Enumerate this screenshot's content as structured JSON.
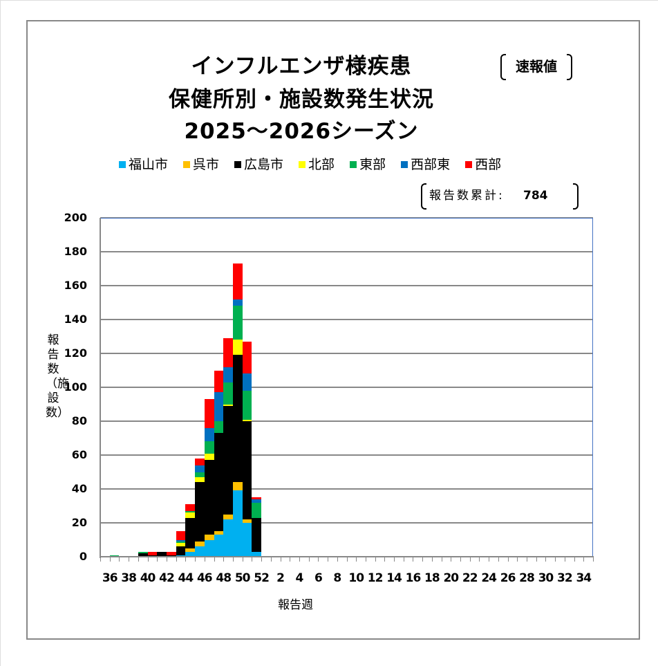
{
  "title": {
    "line1": "インフルエンザ様疾患",
    "line2": "保健所別・施設数発生状況",
    "line3": "2025～2026シーズン",
    "flash_label": "速報値"
  },
  "total": {
    "label": "報告数累計:",
    "value": "784"
  },
  "legend": [
    {
      "label": "福山市",
      "color": "#00b0f0"
    },
    {
      "label": "呉市",
      "color": "#ffc000"
    },
    {
      "label": "広島市",
      "color": "#000000"
    },
    {
      "label": "北部",
      "color": "#ffff00"
    },
    {
      "label": "東部",
      "color": "#00b050"
    },
    {
      "label": "西部東",
      "color": "#0070c0"
    },
    {
      "label": "西部",
      "color": "#ff0000"
    }
  ],
  "axes": {
    "ylabel": "報告数（施設数）",
    "xlabel": "報告週",
    "yticks": [
      "200",
      "180",
      "160",
      "140",
      "120",
      "100",
      "80",
      "60",
      "40",
      "20",
      "0"
    ],
    "xticks": [
      "36",
      "38",
      "40",
      "42",
      "44",
      "46",
      "48",
      "50",
      "52",
      "2",
      "4",
      "6",
      "8",
      "10",
      "12",
      "14",
      "16",
      "18",
      "20",
      "22",
      "24",
      "26",
      "28",
      "30",
      "32",
      "34"
    ]
  },
  "chart_data": {
    "type": "bar",
    "stacked": true,
    "title": "インフルエンザ様疾患 保健所別・施設数発生状況 2025～2026シーズン",
    "xlabel": "報告週",
    "ylabel": "報告数（施設数）",
    "ylim": [
      0,
      200
    ],
    "grid": true,
    "legend_position": "top",
    "categories": [
      "36",
      "37",
      "38",
      "39",
      "40",
      "41",
      "42",
      "43",
      "44",
      "45",
      "46",
      "47",
      "48",
      "49",
      "50",
      "51",
      "52",
      "1",
      "2",
      "3",
      "4",
      "5",
      "6",
      "7",
      "8",
      "9",
      "10",
      "11",
      "12",
      "13",
      "14",
      "15",
      "16",
      "17",
      "18",
      "19",
      "20",
      "21",
      "22",
      "23",
      "24",
      "25",
      "26",
      "27",
      "28",
      "29",
      "30",
      "31",
      "32",
      "33",
      "34",
      "35"
    ],
    "series": [
      {
        "name": "福山市",
        "color": "#00b0f0",
        "values": [
          0,
          0,
          0,
          0,
          0,
          0,
          0,
          0,
          1,
          3,
          6,
          10,
          13,
          22,
          39,
          20,
          3,
          0,
          0,
          0,
          0,
          0,
          0,
          0,
          0,
          0,
          0,
          0,
          0,
          0,
          0,
          0,
          0,
          0,
          0,
          0,
          0,
          0,
          0,
          0,
          0,
          0,
          0,
          0,
          0,
          0,
          0,
          0,
          0,
          0,
          0,
          0
        ]
      },
      {
        "name": "呉市",
        "color": "#ffc000",
        "values": [
          0,
          0,
          0,
          0,
          0,
          0,
          0,
          0,
          0,
          2,
          3,
          3,
          2,
          3,
          5,
          2,
          0,
          0,
          0,
          0,
          0,
          0,
          0,
          0,
          0,
          0,
          0,
          0,
          0,
          0,
          0,
          0,
          0,
          0,
          0,
          0,
          0,
          0,
          0,
          0,
          0,
          0,
          0,
          0,
          0,
          0,
          0,
          0,
          0,
          0,
          0,
          0
        ]
      },
      {
        "name": "広島市",
        "color": "#000000",
        "values": [
          0,
          0,
          0,
          0,
          2,
          1,
          3,
          1,
          5,
          18,
          35,
          44,
          58,
          64,
          75,
          58,
          20,
          0,
          0,
          0,
          0,
          0,
          0,
          0,
          0,
          0,
          0,
          0,
          0,
          0,
          0,
          0,
          0,
          0,
          0,
          0,
          0,
          0,
          0,
          0,
          0,
          0,
          0,
          0,
          0,
          0,
          0,
          0,
          0,
          0,
          0,
          0
        ]
      },
      {
        "name": "北部",
        "color": "#ffff00",
        "values": [
          0,
          0,
          0,
          0,
          0,
          0,
          0,
          0,
          2,
          3,
          3,
          4,
          0,
          1,
          9,
          1,
          0,
          0,
          0,
          0,
          0,
          0,
          0,
          0,
          0,
          0,
          0,
          0,
          0,
          0,
          0,
          0,
          0,
          0,
          0,
          0,
          0,
          0,
          0,
          0,
          0,
          0,
          0,
          0,
          0,
          0,
          0,
          0,
          0,
          0,
          0,
          0
        ]
      },
      {
        "name": "東部",
        "color": "#00b050",
        "values": [
          0,
          1,
          0,
          0,
          1,
          0,
          0,
          0,
          1,
          1,
          3,
          7,
          7,
          13,
          20,
          17,
          9,
          0,
          0,
          0,
          0,
          0,
          0,
          0,
          0,
          0,
          0,
          0,
          0,
          0,
          0,
          0,
          0,
          0,
          0,
          0,
          0,
          0,
          0,
          0,
          0,
          0,
          0,
          0,
          0,
          0,
          0,
          0,
          0,
          0,
          0,
          0
        ]
      },
      {
        "name": "西部東",
        "color": "#0070c0",
        "values": [
          0,
          0,
          0,
          0,
          0,
          0,
          0,
          0,
          1,
          0,
          4,
          8,
          17,
          9,
          4,
          10,
          2,
          0,
          0,
          0,
          0,
          0,
          0,
          0,
          0,
          0,
          0,
          0,
          0,
          0,
          0,
          0,
          0,
          0,
          0,
          0,
          0,
          0,
          0,
          0,
          0,
          0,
          0,
          0,
          0,
          0,
          0,
          0,
          0,
          0,
          0,
          0
        ]
      },
      {
        "name": "西部",
        "color": "#ff0000",
        "values": [
          0,
          0,
          0,
          0,
          0,
          2,
          0,
          2,
          5,
          4,
          4,
          17,
          13,
          17,
          21,
          19,
          1,
          0,
          0,
          0,
          0,
          0,
          0,
          0,
          0,
          0,
          0,
          0,
          0,
          0,
          0,
          0,
          0,
          0,
          0,
          0,
          0,
          0,
          0,
          0,
          0,
          0,
          0,
          0,
          0,
          0,
          0,
          0,
          0,
          0,
          0,
          0
        ]
      }
    ],
    "totals": [
      0,
      1,
      0,
      0,
      3,
      3,
      3,
      3,
      15,
      31,
      58,
      93,
      110,
      129,
      173,
      127,
      35,
      0,
      0,
      0,
      0,
      0,
      0,
      0,
      0,
      0,
      0,
      0,
      0,
      0,
      0,
      0,
      0,
      0,
      0,
      0,
      0,
      0,
      0,
      0,
      0,
      0,
      0,
      0,
      0,
      0,
      0,
      0,
      0,
      0,
      0,
      0
    ],
    "annotations": [
      "速報値",
      "報告数累計: 784"
    ]
  }
}
